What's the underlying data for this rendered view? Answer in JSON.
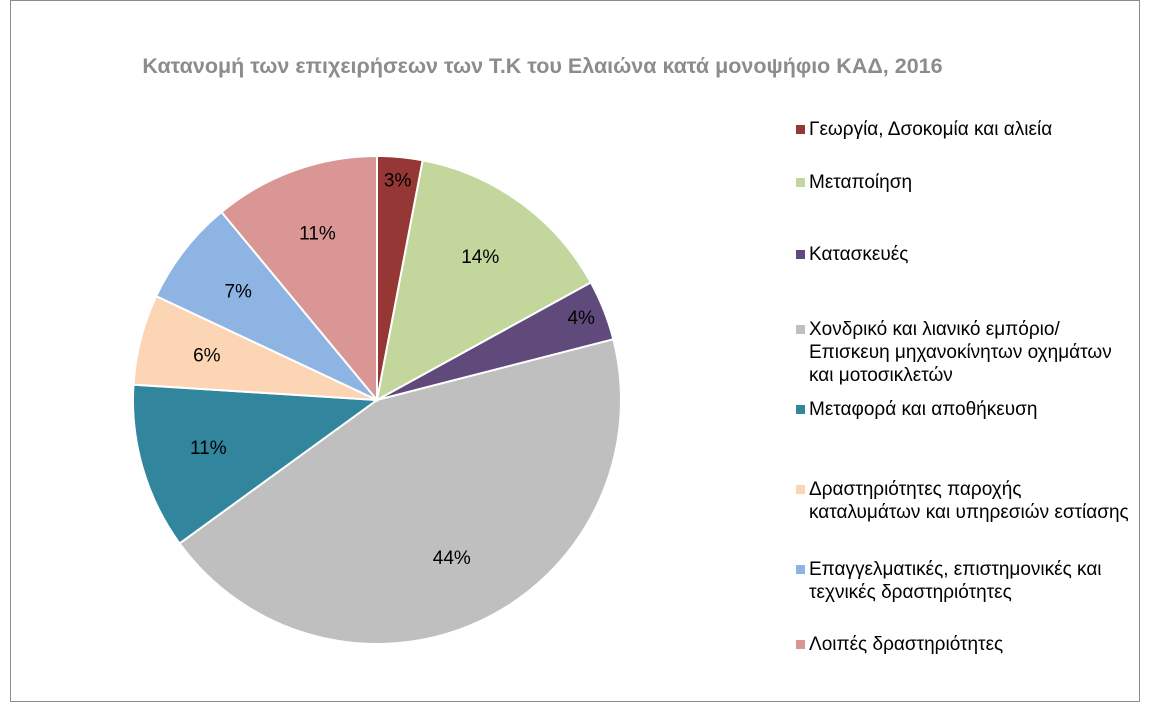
{
  "chart_data": {
    "type": "pie",
    "title": "Κατανομή των επιχειρήσεων των Τ.Κ του Ελαιώνα κατά μονοψήφιο ΚΑΔ, 2016",
    "categories": [
      "Γεωργία, Δσοκομία και αλιεία",
      "Μεταποίηση",
      "Κατασκευές",
      "Χονδρικό και λιανικό εμπόριο/ Επισκευη μηχανοκίνητων οχημάτων και μοτοσικλετών",
      "Μεταφορά και αποθήκευση",
      "Δραστηριότητες παροχής καταλυμάτων και υπηρεσιών εστίασης",
      "Επαγγελματικές, επιστημονικές και τεχνικές δραστηριότητες",
      "Λοιπές δραστηριότητες"
    ],
    "values": [
      3,
      14,
      4,
      44,
      11,
      6,
      7,
      11
    ],
    "value_labels": [
      "3%",
      "14%",
      "4%",
      "44%",
      "11%",
      "6%",
      "7%",
      "11%"
    ],
    "colors": [
      "#953735",
      "#c3d69b",
      "#604a7b",
      "#bfbfbf",
      "#31859c",
      "#fcd5b5",
      "#8eb4e3",
      "#d99694"
    ],
    "legend": "right"
  }
}
